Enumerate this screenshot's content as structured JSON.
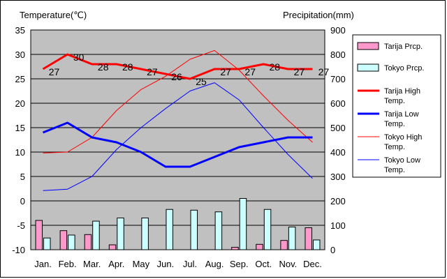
{
  "chart_data": {
    "type": "bar+line",
    "left_axis_title": "Temperature(℃)",
    "right_axis_title": "Precipitation(mm)",
    "left_ticks": [
      "35",
      "30",
      "25",
      "20",
      "15",
      "10",
      "5",
      "0",
      "-5",
      "-10"
    ],
    "right_ticks": [
      "900",
      "800",
      "700",
      "600",
      "500",
      "400",
      "300",
      "200",
      "100",
      "0"
    ],
    "left_ylim": [
      -10,
      35
    ],
    "right_ylim": [
      0,
      900
    ],
    "categories": [
      "Jan.",
      "Feb.",
      "Mar.",
      "Apr.",
      "May",
      "Jun.",
      "Jul.",
      "Aug.",
      "Sep.",
      "Oct.",
      "Nov.",
      "Dec."
    ],
    "grid": true,
    "legend_position": "right",
    "series": [
      {
        "name": "Tarija Prcp.",
        "kind": "bar",
        "axis": "right",
        "color": "#ff99cc",
        "values": [
          120,
          78,
          62,
          20,
          0,
          0,
          0,
          0,
          10,
          22,
          38,
          90
        ]
      },
      {
        "name": "Tokyo Prcp.",
        "kind": "bar",
        "axis": "right",
        "color": "#ccffff",
        "values": [
          48,
          60,
          117,
          130,
          130,
          165,
          162,
          155,
          210,
          165,
          93,
          40
        ]
      },
      {
        "name": "Tarija High Temp.",
        "kind": "line",
        "axis": "left",
        "color": "#ff0000",
        "width": 3,
        "values": [
          27,
          30,
          28,
          28,
          27,
          26,
          25,
          27,
          27,
          28,
          27,
          27
        ],
        "labels": [
          "27",
          "30",
          "28",
          "28",
          "27",
          "26",
          "25",
          "27",
          "27",
          "28",
          "27",
          "27"
        ]
      },
      {
        "name": "Tarija Low Temp.",
        "kind": "line",
        "axis": "left",
        "color": "#0000ff",
        "width": 3,
        "values": [
          14,
          16,
          13,
          12,
          10,
          7,
          7,
          9,
          11,
          12,
          13,
          13
        ]
      },
      {
        "name": "Tokyo High Temp.",
        "kind": "line",
        "axis": "left",
        "color": "#ff0000",
        "width": 1,
        "values": [
          9.8,
          10,
          13,
          18.5,
          22.8,
          25.5,
          29,
          30.8,
          26.8,
          21.5,
          16.5,
          12
        ]
      },
      {
        "name": "Tokyo Low Temp.",
        "kind": "line",
        "axis": "left",
        "color": "#0000ff",
        "width": 1,
        "values": [
          2.1,
          2.4,
          5,
          10.5,
          15,
          18.9,
          22.5,
          24.2,
          20.7,
          15,
          9.5,
          4.6
        ]
      }
    ],
    "legend": [
      {
        "name": "Tarija Prcp.",
        "swatch": "bar",
        "color": "#ff99cc"
      },
      {
        "name": "Tokyo Prcp.",
        "swatch": "bar",
        "color": "#ccffff"
      },
      {
        "name": "Tarija High Temp.",
        "swatch": "line",
        "color": "#ff0000",
        "width": 3
      },
      {
        "name": "Tarija Low Temp.",
        "swatch": "line",
        "color": "#0000ff",
        "width": 3
      },
      {
        "name": "Tokyo High Temp.",
        "swatch": "line",
        "color": "#ff0000",
        "width": 1
      },
      {
        "name": "Tokyo Low Temp.",
        "swatch": "line",
        "color": "#0000ff",
        "width": 1
      }
    ],
    "plot_background": "#c0c0c0"
  }
}
